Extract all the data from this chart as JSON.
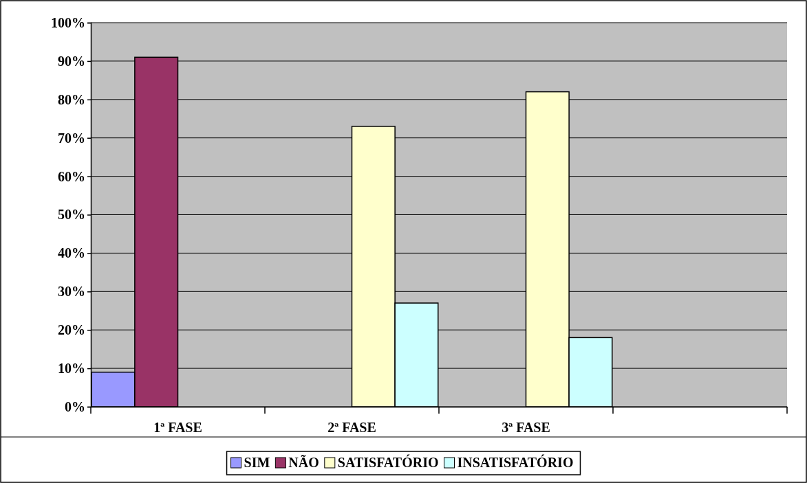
{
  "chart_data": {
    "type": "bar",
    "categories": [
      "1ª FASE",
      "2ª FASE",
      "3ª FASE",
      null
    ],
    "series": [
      {
        "name": "SIM",
        "color": "#9999ff",
        "values": [
          9,
          null,
          null,
          null
        ]
      },
      {
        "name": "NÃO",
        "color": "#993366",
        "values": [
          91,
          null,
          null,
          null
        ]
      },
      {
        "name": "SATISFATÓRIO",
        "color": "#ffffcc",
        "values": [
          null,
          73,
          82,
          null
        ]
      },
      {
        "name": "INSATISFATÓRIO",
        "color": "#ccffff",
        "values": [
          null,
          27,
          18,
          null
        ]
      }
    ],
    "ylim": [
      0,
      100
    ],
    "yticks": [
      {
        "value": 0,
        "label": "0%"
      },
      {
        "value": 10,
        "label": "10%"
      },
      {
        "value": 20,
        "label": "20%"
      },
      {
        "value": 30,
        "label": "30%"
      },
      {
        "value": 40,
        "label": "40%"
      },
      {
        "value": 50,
        "label": "50%"
      },
      {
        "value": 60,
        "label": "60%"
      },
      {
        "value": 70,
        "label": "70%"
      },
      {
        "value": 80,
        "label": "80%"
      },
      {
        "value": 90,
        "label": "90%"
      },
      {
        "value": 100,
        "label": "100%"
      }
    ],
    "grid": "y",
    "legend": "bottom"
  }
}
